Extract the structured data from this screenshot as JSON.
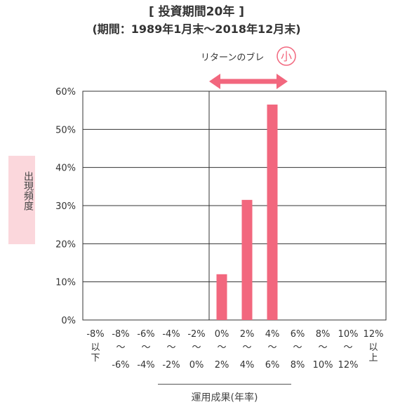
{
  "titles": {
    "line1": "[ 投資期間20年 ]",
    "line2": "(期間：1989年1月末〜2018年12月末)"
  },
  "annotation": {
    "text": "リターンのブレ",
    "badge": "小"
  },
  "chart_data": {
    "type": "bar",
    "ylabel": "出現頻度",
    "xlabel": "運用成果(年率)",
    "ylim": [
      0,
      60
    ],
    "yticks": [
      "0%",
      "10%",
      "20%",
      "30%",
      "40%",
      "50%",
      "60%"
    ],
    "categories": [
      [
        "-8%",
        "以下"
      ],
      [
        "-8%",
        "〜",
        "-6%"
      ],
      [
        "-6%",
        "〜",
        "-4%"
      ],
      [
        "-4%",
        "〜",
        "-2%"
      ],
      [
        "-2%",
        "〜",
        "0%"
      ],
      [
        "0%",
        "〜",
        "2%"
      ],
      [
        "2%",
        "〜",
        "4%"
      ],
      [
        "4%",
        "〜",
        "6%"
      ],
      [
        "6%",
        "〜",
        "8%"
      ],
      [
        "8%",
        "〜",
        "10%"
      ],
      [
        "10%",
        "〜",
        "12%"
      ],
      [
        "12%",
        "以上"
      ]
    ],
    "values": [
      0,
      0,
      0,
      0,
      0,
      12,
      31.5,
      56.5,
      0,
      0,
      0,
      0
    ],
    "bar_color": "#f2677e",
    "grid": true
  }
}
